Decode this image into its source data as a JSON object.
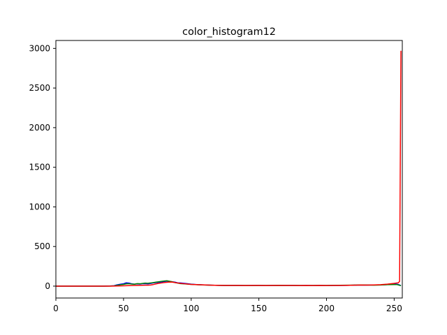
{
  "chart_data": {
    "type": "line",
    "title": "color_histogram12",
    "xlabel": "",
    "ylabel": "",
    "xlim": [
      0,
      256
    ],
    "ylim": [
      -150,
      3100
    ],
    "x_ticks": [
      0,
      50,
      100,
      150,
      200,
      250
    ],
    "y_ticks": [
      0,
      500,
      1000,
      1500,
      2000,
      2500,
      3000
    ],
    "grid": false,
    "x": [
      0,
      5,
      10,
      15,
      20,
      25,
      30,
      35,
      40,
      43,
      45,
      48,
      50,
      52,
      54,
      56,
      58,
      60,
      62,
      64,
      66,
      68,
      70,
      72,
      74,
      76,
      78,
      80,
      82,
      84,
      86,
      88,
      90,
      92,
      95,
      100,
      105,
      110,
      115,
      120,
      125,
      130,
      135,
      140,
      145,
      150,
      155,
      160,
      165,
      170,
      175,
      180,
      185,
      190,
      195,
      200,
      205,
      210,
      215,
      220,
      225,
      230,
      235,
      240,
      245,
      250,
      252,
      253,
      254,
      255
    ],
    "series": [
      {
        "color": "#0000ff",
        "values": [
          0,
          0,
          0,
          0,
          0,
          0,
          0,
          0,
          2,
          5,
          15,
          25,
          30,
          42,
          38,
          30,
          25,
          28,
          26,
          30,
          32,
          28,
          34,
          40,
          45,
          48,
          52,
          58,
          62,
          60,
          55,
          50,
          42,
          40,
          35,
          25,
          18,
          15,
          12,
          10,
          8,
          9,
          8,
          7,
          8,
          8,
          7,
          9,
          8,
          9,
          8,
          7,
          8,
          7,
          8,
          7,
          8,
          9,
          10,
          12,
          14,
          13,
          15,
          15,
          20,
          25,
          25,
          20,
          15,
          5
        ]
      },
      {
        "color": "#008000",
        "values": [
          0,
          0,
          0,
          0,
          0,
          0,
          0,
          0,
          1,
          3,
          10,
          18,
          22,
          28,
          30,
          26,
          24,
          32,
          30,
          34,
          38,
          36,
          40,
          45,
          50,
          55,
          60,
          65,
          68,
          62,
          55,
          45,
          38,
          32,
          28,
          22,
          17,
          14,
          12,
          10,
          9,
          8,
          9,
          8,
          7,
          8,
          9,
          8,
          10,
          8,
          9,
          8,
          7,
          8,
          8,
          9,
          10,
          11,
          12,
          13,
          15,
          14,
          12,
          14,
          18,
          20,
          20,
          15,
          10,
          5
        ]
      },
      {
        "color": "#ff0000",
        "values": [
          0,
          0,
          0,
          0,
          0,
          0,
          0,
          0,
          0,
          1,
          2,
          3,
          4,
          5,
          6,
          7,
          8,
          9,
          10,
          11,
          12,
          12,
          14,
          20,
          28,
          35,
          40,
          45,
          48,
          52,
          50,
          45,
          40,
          35,
          30,
          22,
          18,
          15,
          12,
          10,
          8,
          9,
          8,
          7,
          8,
          8,
          7,
          9,
          8,
          9,
          8,
          7,
          8,
          7,
          8,
          7,
          8,
          9,
          10,
          12,
          14,
          13,
          15,
          18,
          25,
          35,
          40,
          40,
          60,
          2970
        ]
      }
    ]
  }
}
